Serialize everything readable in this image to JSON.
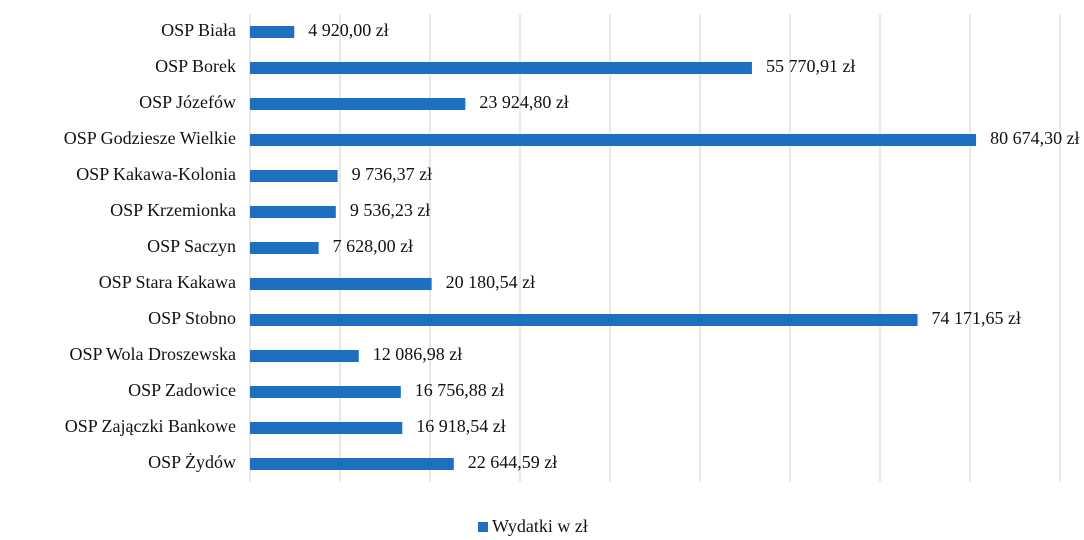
{
  "chart_data": {
    "type": "hbar",
    "categories": [
      "OSP Biała",
      "OSP Borek",
      "OSP Józefów",
      "OSP Godziesze Wielkie",
      "OSP Kakawa-Kolonia",
      "OSP Krzemionka",
      "OSP Saczyn",
      "OSP Stara Kakawa",
      "OSP Stobno",
      "OSP Wola Droszewska",
      "OSP Zadowice",
      "OSP Zajączki Bankowe",
      "OSP Żydów"
    ],
    "series": [
      {
        "name": "Wydatki w zł",
        "color": "#1f6fbf",
        "values": [
          4920.0,
          55770.91,
          23924.8,
          80674.3,
          9736.37,
          9536.23,
          7628.0,
          20180.54,
          74171.65,
          12086.98,
          16756.88,
          16918.54,
          22644.59
        ],
        "value_labels": [
          "4 920,00 zł",
          "55 770,91 zł",
          "23 924,80 zł",
          "80 674,30 zł",
          "9 736,37 zł",
          "9 536,23 zł",
          "7 628,00 zł",
          "20 180,54 zł",
          "74 171,65 zł",
          "12 086,98 zł",
          "16 756,88 zł",
          "16 918,54 zł",
          "22 644,59 zł"
        ]
      }
    ],
    "xlim": [
      0,
      90000
    ],
    "xticks": [
      0,
      10000,
      20000,
      30000,
      40000,
      50000,
      60000,
      70000,
      80000,
      90000
    ],
    "grid": true,
    "legend": "bottom"
  }
}
